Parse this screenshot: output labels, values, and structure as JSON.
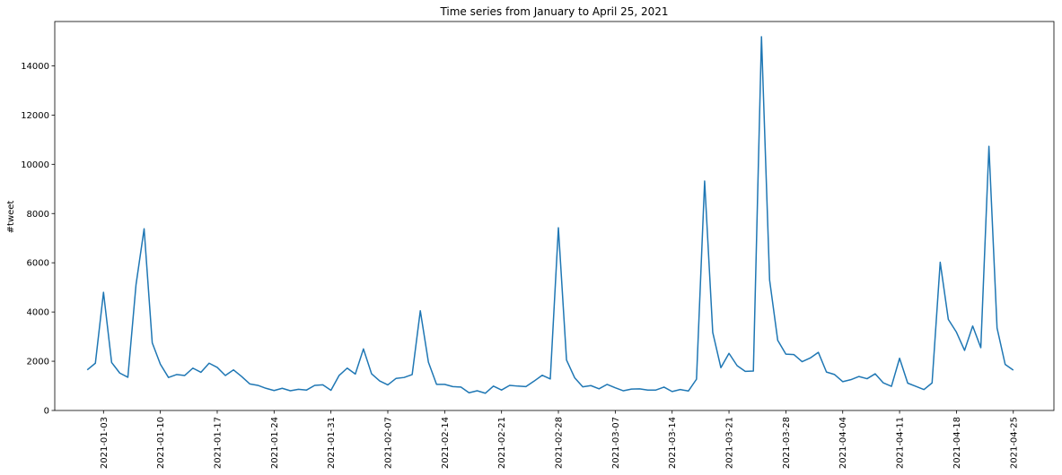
{
  "chart_data": {
    "type": "line",
    "title": "Time series from January to April 25, 2021",
    "xlabel": "",
    "ylabel": "#tweet",
    "x_start": "2021-01-01",
    "x_end": "2021-04-25",
    "xlim": [
      "2020-12-28",
      "2021-04-30"
    ],
    "ylim": [
      0,
      15800
    ],
    "yticks": [
      0,
      2000,
      4000,
      6000,
      8000,
      10000,
      12000,
      14000
    ],
    "xticks": [
      "2021-01-03",
      "2021-01-10",
      "2021-01-17",
      "2021-01-24",
      "2021-01-31",
      "2021-02-07",
      "2021-02-14",
      "2021-02-21",
      "2021-02-28",
      "2021-03-07",
      "2021-03-14",
      "2021-03-21",
      "2021-03-28",
      "2021-04-04",
      "2021-04-11",
      "2021-04-18",
      "2021-04-25"
    ],
    "grid": false,
    "line_color": "#1f77b4",
    "series": [
      {
        "name": "",
        "values": [
          1650,
          1920,
          4800,
          1950,
          1520,
          1350,
          5100,
          7380,
          2750,
          1880,
          1340,
          1460,
          1420,
          1720,
          1550,
          1920,
          1750,
          1420,
          1650,
          1380,
          1080,
          1020,
          900,
          810,
          900,
          800,
          860,
          830,
          1020,
          1040,
          820,
          1420,
          1720,
          1480,
          2500,
          1490,
          1200,
          1040,
          1300,
          1340,
          1460,
          4050,
          1960,
          1060,
          1060,
          970,
          950,
          720,
          800,
          700,
          990,
          830,
          1020,
          990,
          970,
          1190,
          1430,
          1280,
          7420,
          2050,
          1330,
          960,
          1010,
          880,
          1060,
          920,
          800,
          870,
          880,
          830,
          830,
          950,
          770,
          850,
          790,
          1270,
          9320,
          3170,
          1740,
          2320,
          1820,
          1590,
          1600,
          15180,
          5300,
          2850,
          2290,
          2270,
          1980,
          2130,
          2360,
          1560,
          1460,
          1170,
          1250,
          1380,
          1290,
          1490,
          1120,
          980,
          2120,
          1110,
          980,
          850,
          1120,
          6020,
          3700,
          3180,
          2440,
          3430,
          2550,
          10730,
          3350,
          1870,
          1640
        ]
      }
    ]
  }
}
